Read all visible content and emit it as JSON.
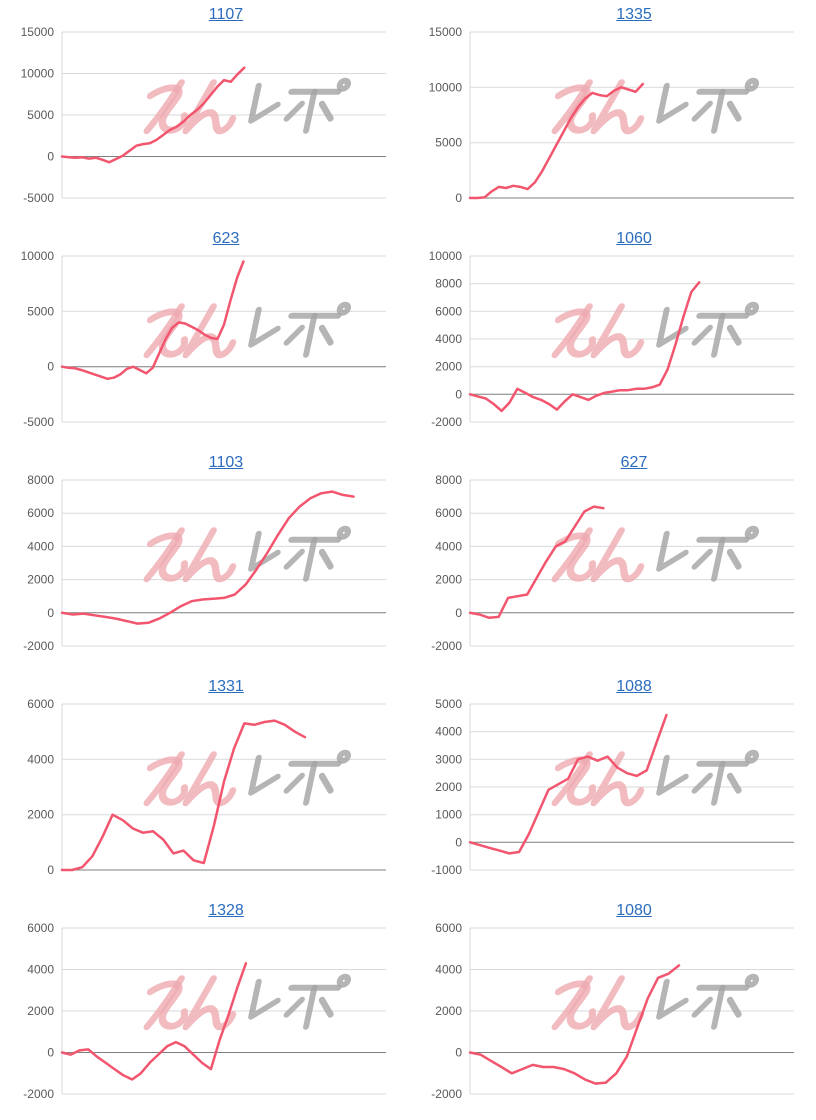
{
  "page": {
    "background": "#ffffff"
  },
  "colors": {
    "link": "#2a6cbe",
    "line": "#f2566f",
    "grid": "#d9d9d9",
    "zero_axis": "#7f7f7f",
    "tick_label": "#595959",
    "watermark_pink": "#eeaab0",
    "watermark_gray": "#a3a3a3"
  },
  "watermark": {
    "name": "minrepo-logo-watermark",
    "text_pink": "みん",
    "text_gray": "レポ"
  },
  "chart_data": {
    "type": "line",
    "layout": {
      "columns": 2,
      "rows": 5,
      "grid": "horizontal-only",
      "legend": "none"
    },
    "charts": [
      {
        "title": "1107",
        "ylim": [
          -5000,
          15000
        ],
        "yticks": [
          15000,
          10000,
          5000,
          0,
          -5000
        ],
        "x_total_slots": 49,
        "values": [
          0,
          -100,
          -150,
          -100,
          -250,
          -150,
          -400,
          -700,
          -300,
          100,
          700,
          1300,
          1500,
          1600,
          2000,
          2600,
          3200,
          3600,
          4200,
          5000,
          5600,
          6400,
          7400,
          8400,
          9200,
          9000,
          9900,
          10700
        ]
      },
      {
        "title": "1335",
        "ylim": [
          0,
          15000
        ],
        "yticks": [
          15000,
          10000,
          5000,
          0
        ],
        "x_total_slots": 46,
        "values": [
          0,
          0,
          50,
          600,
          1000,
          900,
          1100,
          1000,
          800,
          1400,
          2400,
          3600,
          4800,
          6000,
          7200,
          8200,
          9000,
          9500,
          9300,
          9200,
          9700,
          10000,
          9800,
          9600,
          10300
        ]
      },
      {
        "title": "623",
        "ylim": [
          -5000,
          10000
        ],
        "yticks": [
          10000,
          5000,
          0,
          -5000
        ],
        "x_total_slots": 51,
        "values": [
          0,
          -100,
          -150,
          -300,
          -500,
          -700,
          -900,
          -1100,
          -1000,
          -700,
          -200,
          0,
          -300,
          -600,
          -100,
          1200,
          2500,
          3500,
          4000,
          3900,
          3600,
          3300,
          2900,
          2600,
          2500,
          3800,
          6000,
          8000,
          9500
        ]
      },
      {
        "title": "1060",
        "ylim": [
          -2000,
          10000
        ],
        "yticks": [
          10000,
          8000,
          6000,
          4000,
          2000,
          0,
          -2000
        ],
        "x_total_slots": 42,
        "values": [
          0,
          -150,
          -300,
          -700,
          -1200,
          -600,
          400,
          100,
          -200,
          -400,
          -700,
          -1100,
          -500,
          0,
          -200,
          -400,
          -100,
          100,
          200,
          300,
          300,
          400,
          400,
          500,
          700,
          1800,
          3600,
          5600,
          7400,
          8100
        ]
      },
      {
        "title": "1103",
        "ylim": [
          -2000,
          8000
        ],
        "yticks": [
          8000,
          6000,
          4000,
          2000,
          0,
          -2000
        ],
        "x_total_slots": 31,
        "values": [
          0,
          -100,
          -50,
          -150,
          -250,
          -350,
          -500,
          -650,
          -600,
          -350,
          0,
          400,
          700,
          800,
          850,
          900,
          1100,
          1700,
          2600,
          3600,
          4700,
          5700,
          6400,
          6900,
          7200,
          7300,
          7100,
          7000
        ]
      },
      {
        "title": "627",
        "ylim": [
          -2000,
          8000
        ],
        "yticks": [
          8000,
          6000,
          4000,
          2000,
          0,
          -2000
        ],
        "x_total_slots": 35,
        "values": [
          0,
          -100,
          -300,
          -250,
          900,
          1000,
          1100,
          2100,
          3100,
          4000,
          4300,
          5200,
          6100,
          6400,
          6300
        ]
      },
      {
        "title": "1331",
        "ylim": [
          0,
          6000
        ],
        "yticks": [
          6000,
          4000,
          2000,
          0
        ],
        "x_total_slots": 33,
        "values": [
          0,
          0,
          100,
          500,
          1200,
          2000,
          1800,
          1500,
          1350,
          1400,
          1100,
          600,
          700,
          350,
          250,
          1600,
          3200,
          4400,
          5300,
          5250,
          5350,
          5400,
          5250,
          5000,
          4800
        ]
      },
      {
        "title": "1088",
        "ylim": [
          -1000,
          5000
        ],
        "yticks": [
          5000,
          4000,
          3000,
          2000,
          1000,
          0,
          -1000
        ],
        "x_total_slots": 34,
        "values": [
          0,
          -100,
          -200,
          -300,
          -400,
          -350,
          300,
          1100,
          1900,
          2100,
          2300,
          3000,
          3100,
          2950,
          3100,
          2700,
          2500,
          2400,
          2600,
          3600,
          4600
        ]
      },
      {
        "title": "1328",
        "ylim": [
          -2000,
          6000
        ],
        "yticks": [
          6000,
          4000,
          2000,
          0,
          -2000
        ],
        "x_total_slots": 38,
        "values": [
          0,
          -100,
          100,
          150,
          -200,
          -500,
          -800,
          -1100,
          -1300,
          -1000,
          -500,
          -100,
          300,
          500,
          300,
          -100,
          -500,
          -800,
          600,
          1800,
          3100,
          4300
        ]
      },
      {
        "title": "1080",
        "ylim": [
          -2000,
          6000
        ],
        "yticks": [
          6000,
          4000,
          2000,
          0,
          -2000
        ],
        "x_total_slots": 32,
        "values": [
          0,
          -100,
          -400,
          -700,
          -1000,
          -800,
          -600,
          -700,
          -700,
          -800,
          -1000,
          -1300,
          -1500,
          -1450,
          -1000,
          -200,
          1200,
          2600,
          3600,
          3800,
          4200
        ]
      }
    ]
  }
}
